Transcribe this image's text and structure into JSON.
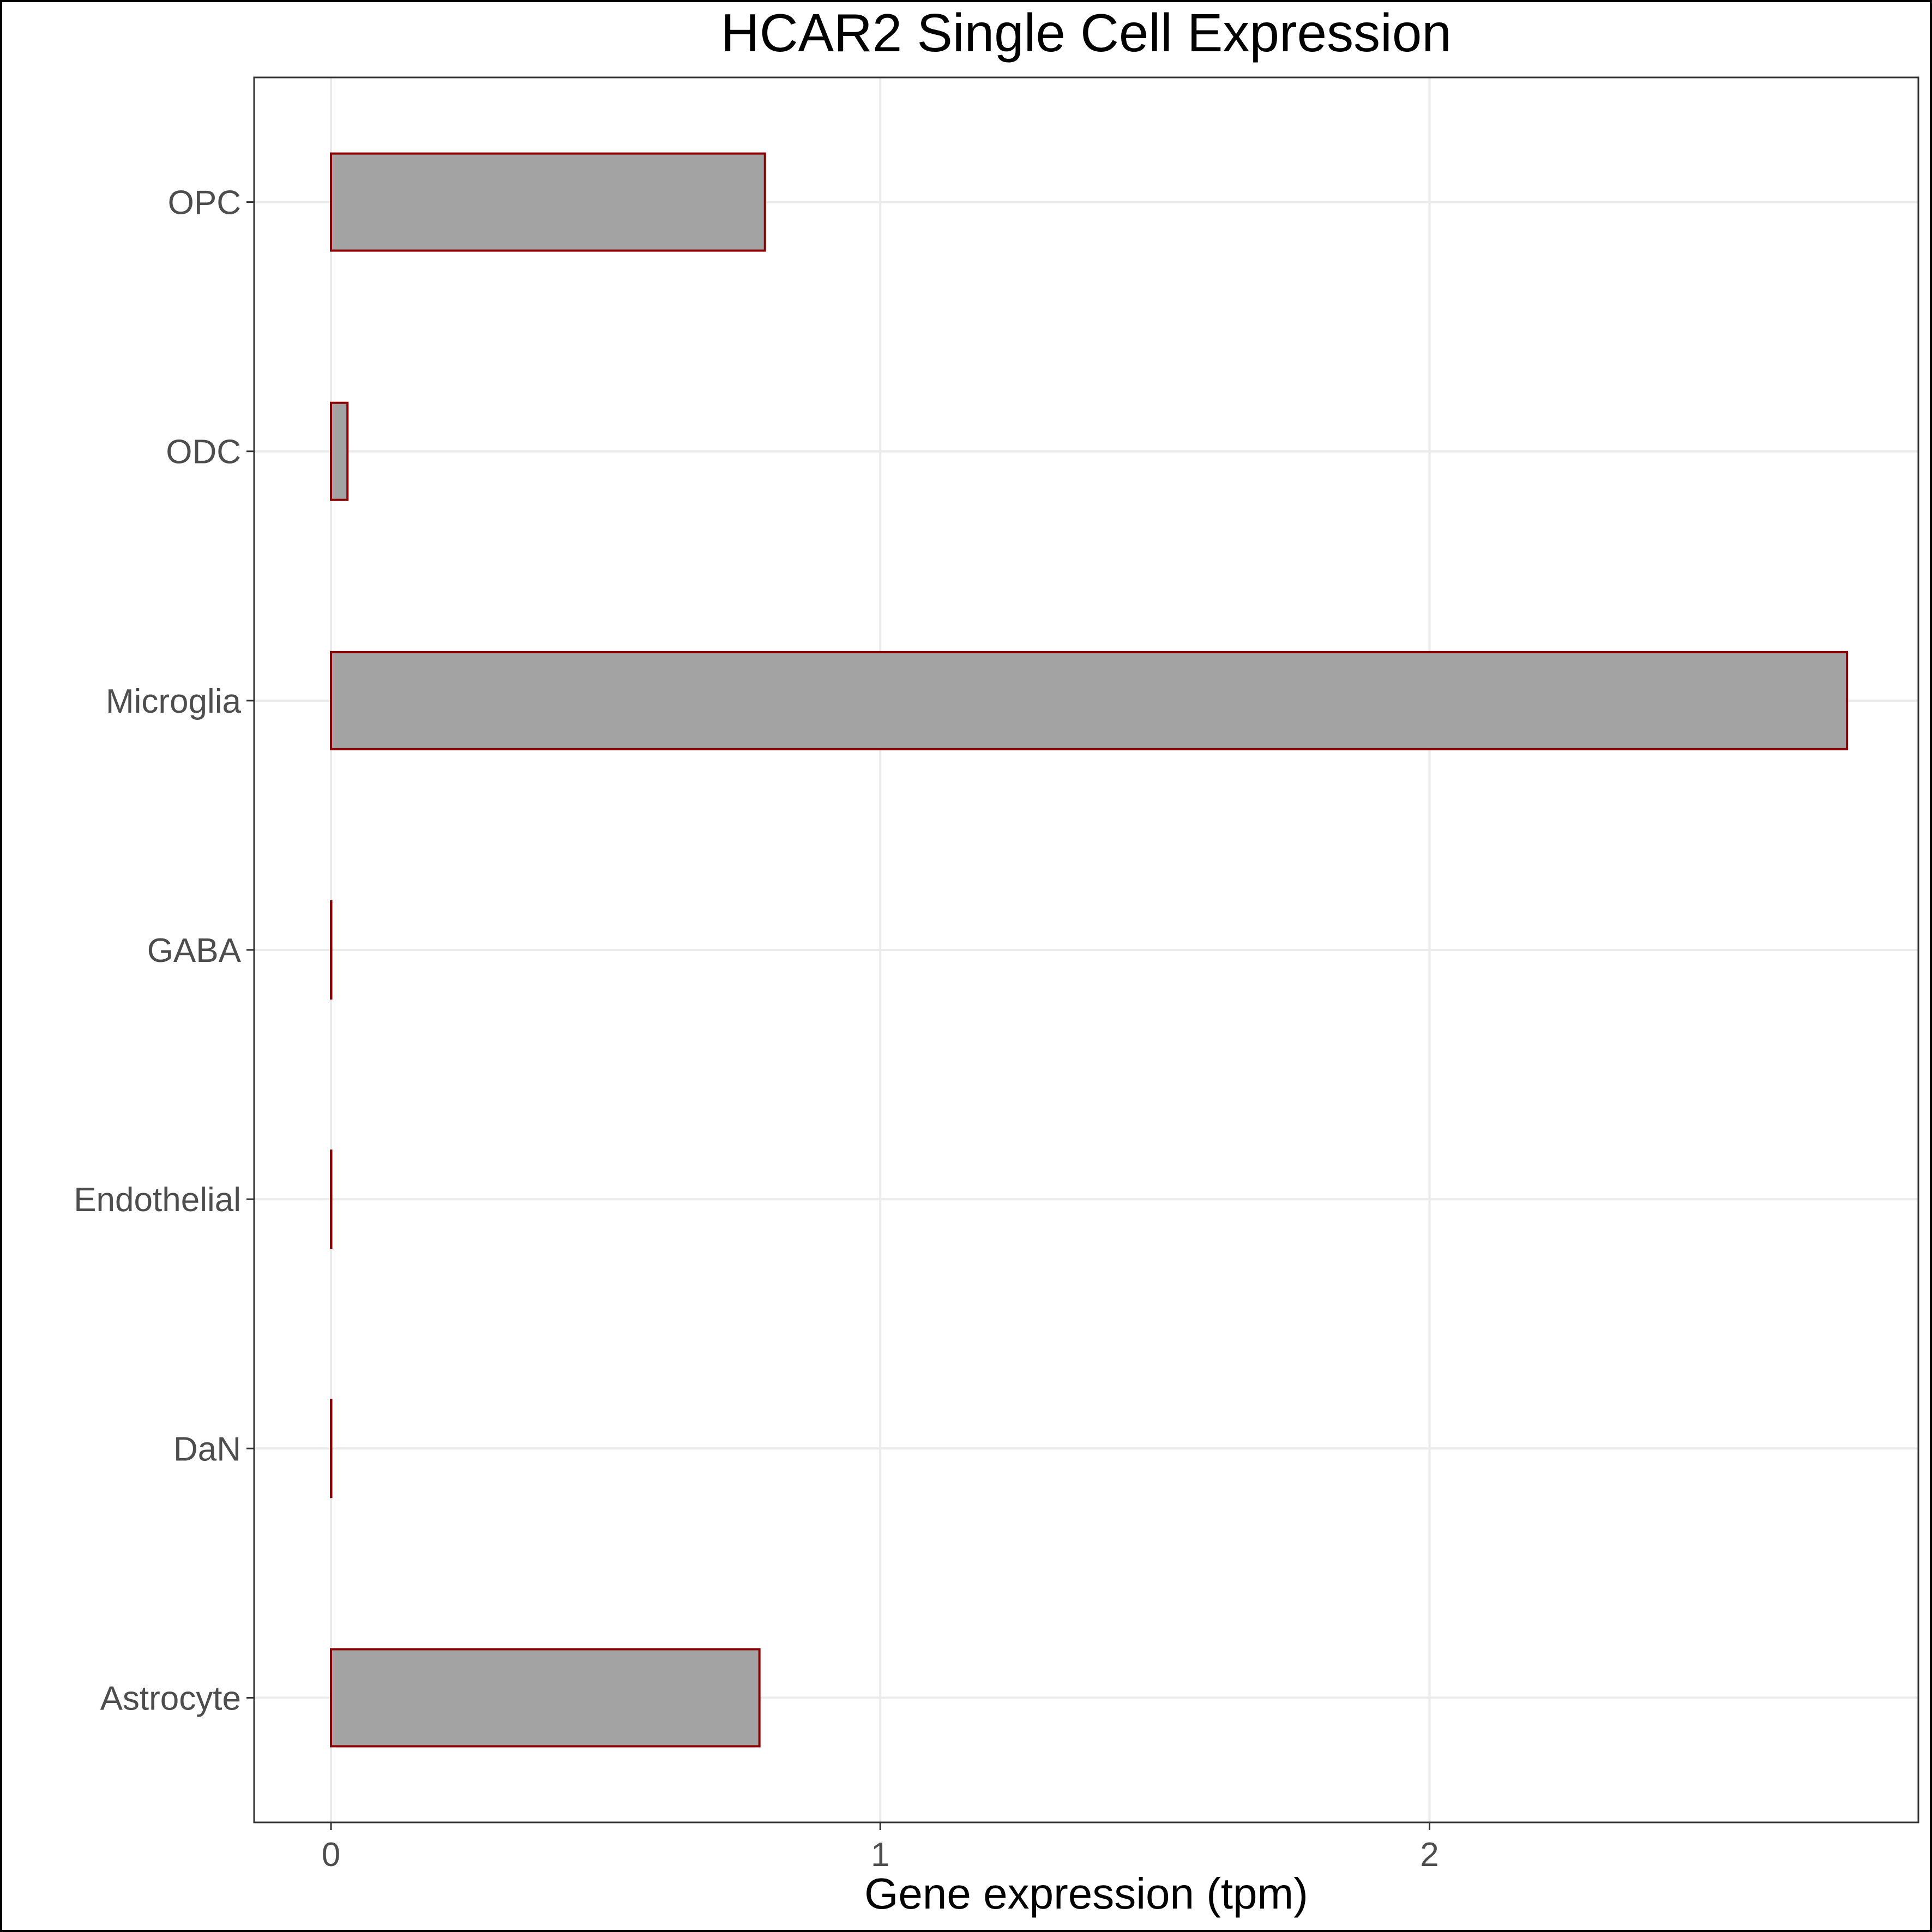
{
  "chart_data": {
    "type": "bar",
    "orientation": "horizontal",
    "title": "HCAR2 Single Cell Expression",
    "xlabel": "Gene expression (tpm)",
    "ylabel": "",
    "categories": [
      "Astrocyte",
      "DaN",
      "Endothelial",
      "GABA",
      "Microglia",
      "ODC",
      "OPC"
    ],
    "values": [
      0.78,
      0.0,
      0.0,
      0.0,
      2.76,
      0.03,
      0.79
    ],
    "xlim": [
      -0.14,
      2.89
    ],
    "xticks": [
      0,
      1,
      2
    ],
    "xtick_labels": [
      "0",
      "1",
      "2"
    ],
    "grid": true,
    "colors": {
      "bar_fill": "#a3a3a3",
      "bar_stroke": "#8b0000",
      "grid": "#ebebeb",
      "panel_border": "#333333"
    }
  }
}
